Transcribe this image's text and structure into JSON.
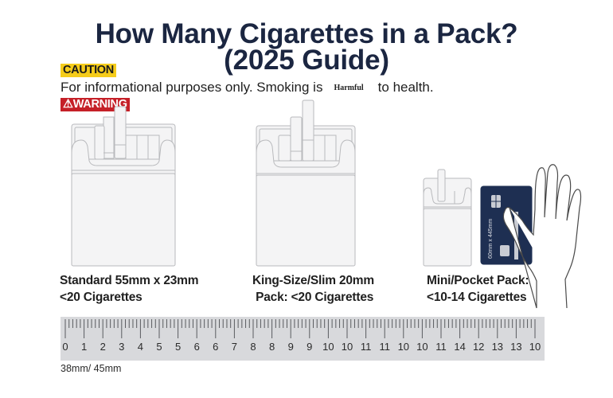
{
  "header": {
    "title_line1": "How Many Cigarettes in a Pack?",
    "title_line2": "(2025 Guide)"
  },
  "notices": {
    "caution_label": "CAUTION",
    "info_text_before": "For informational purposes only. Smoking is",
    "info_highlight": "Harmful",
    "info_text_after": "to health.",
    "warning_label": "⚠WARNING",
    "warning_icon": "warning-triangle-icon"
  },
  "packs": [
    {
      "name": "standard",
      "line1": "Standard 55mm x 23mm",
      "line2": "<20 Cigarettes"
    },
    {
      "name": "king-size-slim",
      "line1": "King-Size/Slim 20mm",
      "line2": " Pack: <20 Cigarettes"
    },
    {
      "name": "mini-pocket",
      "line1": "Mini/Pocket Pack:",
      "line2": "<10-14 Cigarettes"
    }
  ],
  "comparison": {
    "card_text": "60mm x 445mm",
    "card_icon": "credit-card-icon",
    "hand_icon": "hand-outline-icon"
  },
  "ruler": {
    "labels": [
      "0",
      "1",
      "2",
      "3",
      "4",
      "5",
      "5",
      "6",
      "6",
      "7",
      "8",
      "8",
      "9",
      "9",
      "10",
      "10",
      "11",
      "11",
      "10",
      "10",
      "11",
      "14",
      "12",
      "13",
      "13",
      "10"
    ],
    "note": "38mm/ 45mm"
  },
  "colors": {
    "title": "#1b2641",
    "caution_bg": "#f5cc1b",
    "warning_bg": "#c52028",
    "card_bg": "#1e2f52",
    "ruler_bg": "#d8d9dc"
  }
}
